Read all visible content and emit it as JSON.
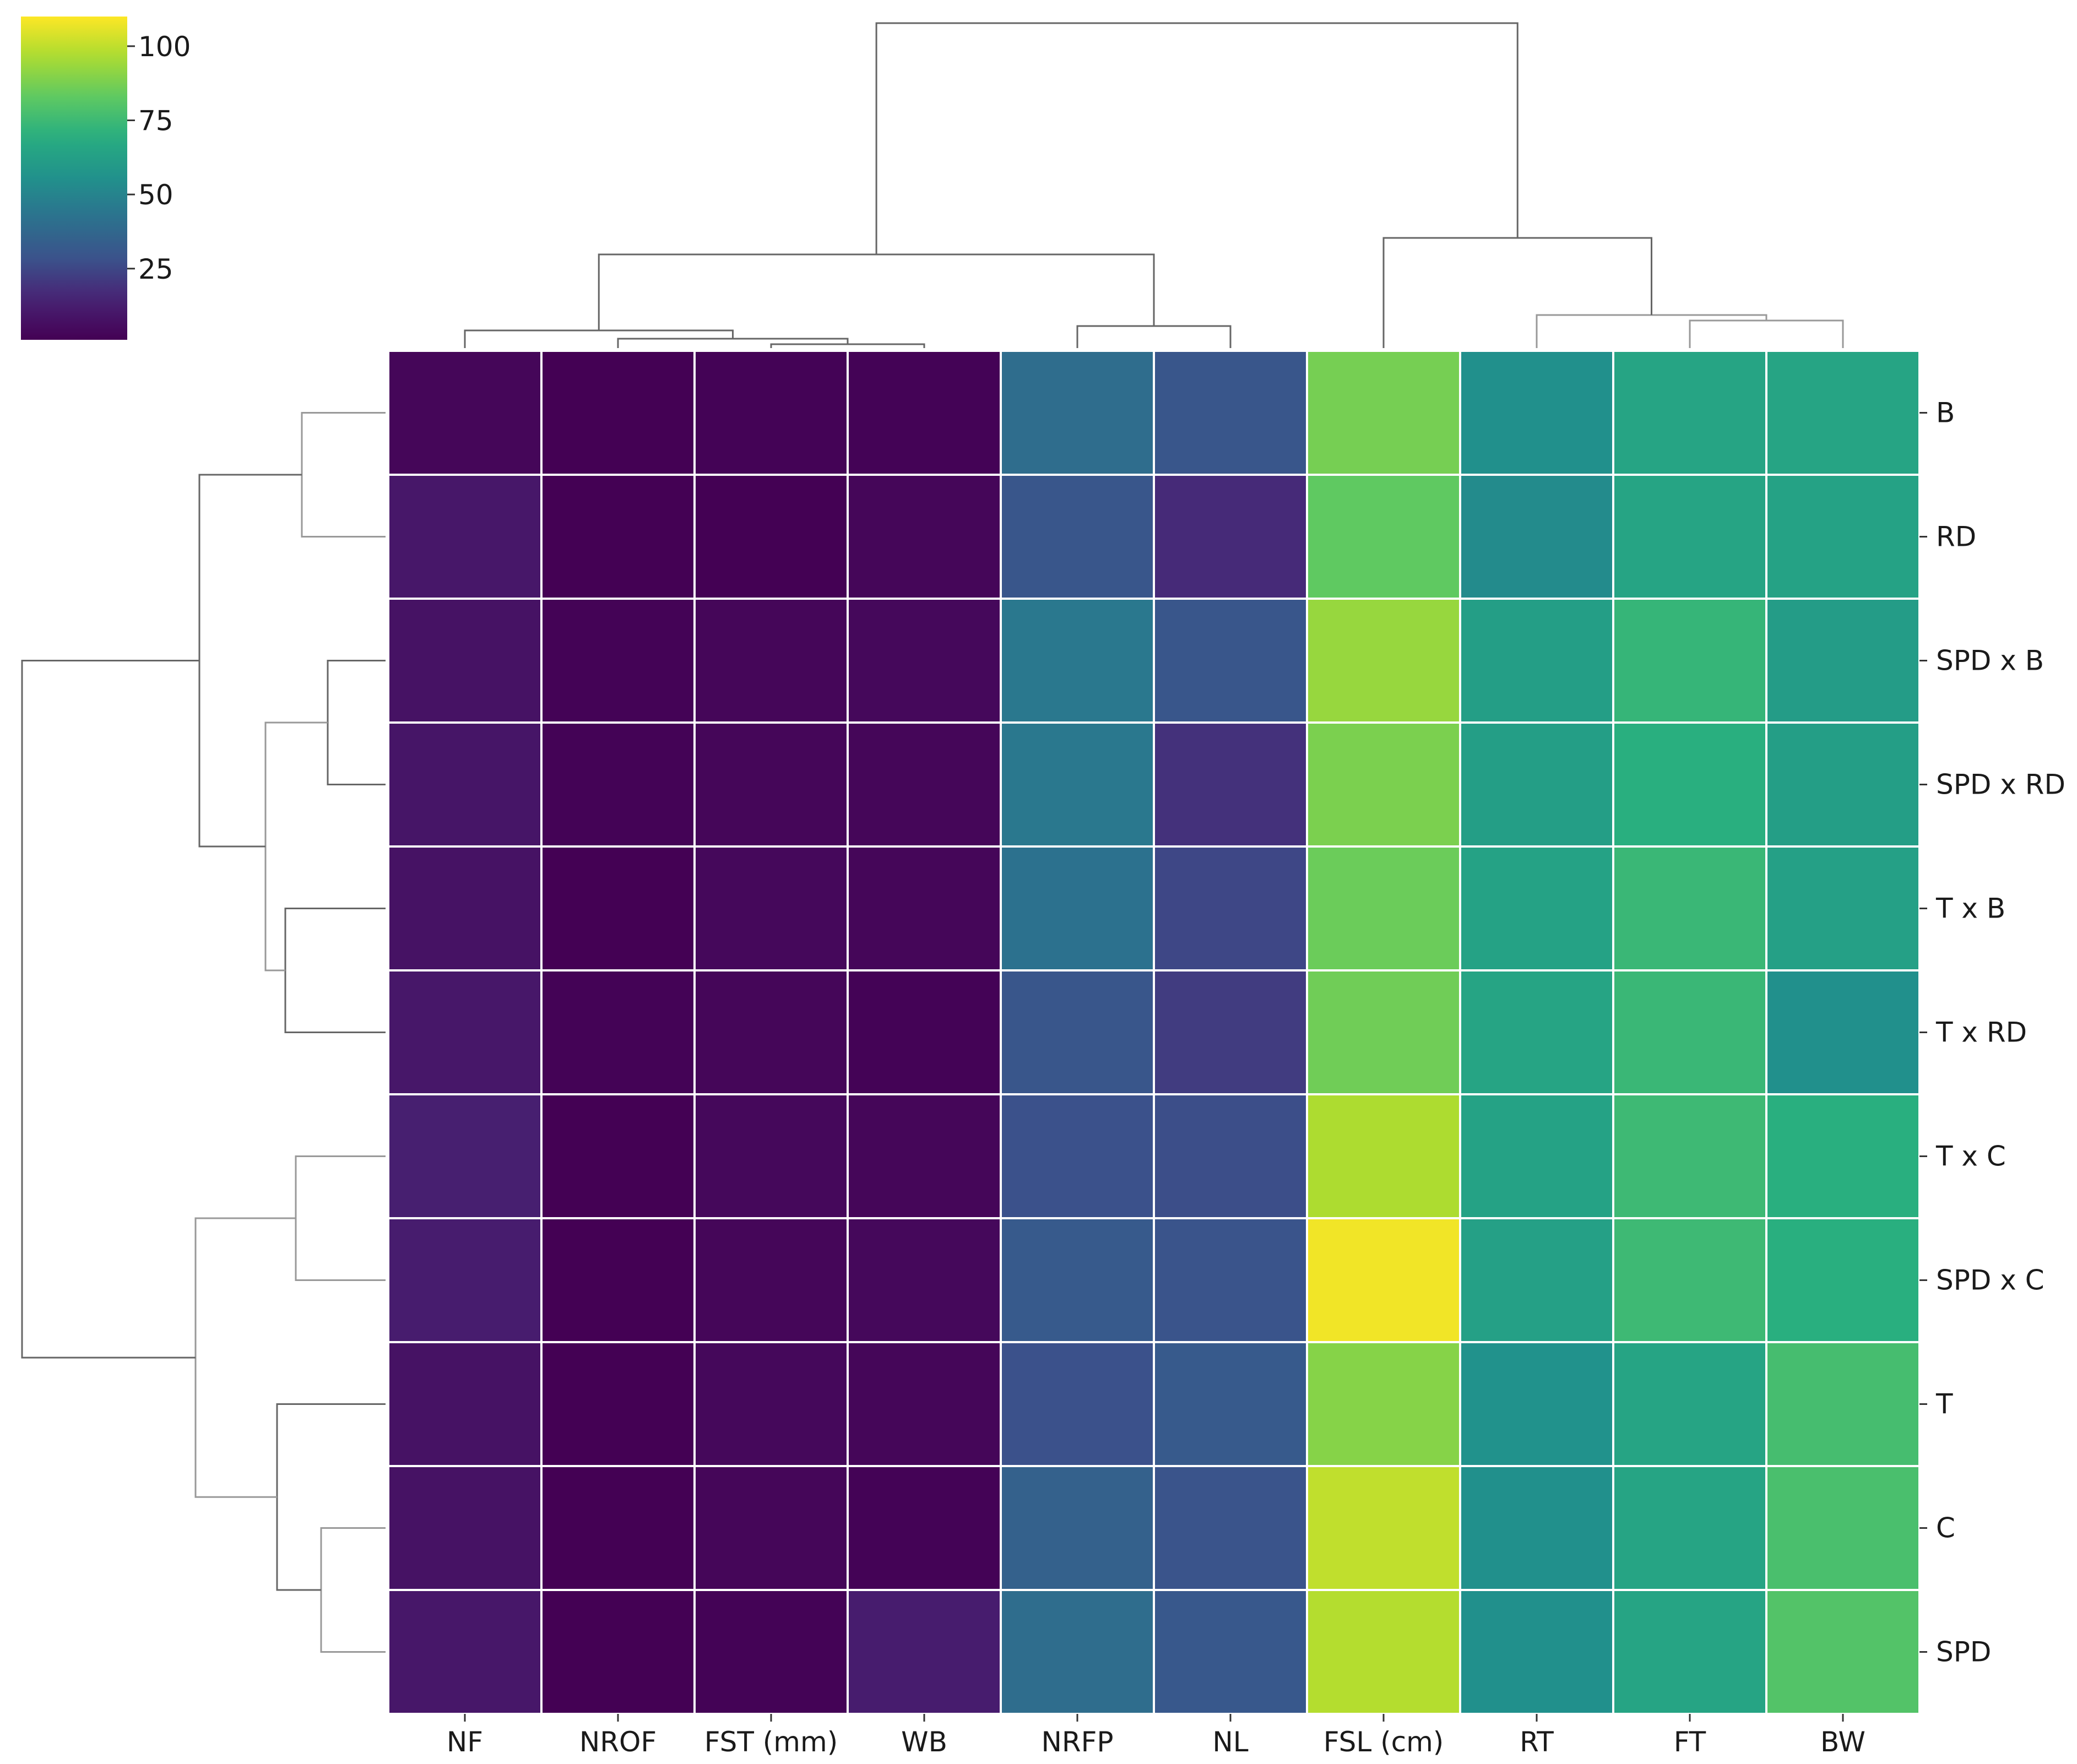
{
  "chart_data": {
    "type": "heatmap",
    "title": "",
    "xlabel": "",
    "ylabel": "",
    "columns": [
      "NF",
      "NROF",
      "FST (mm)",
      "WB",
      "NRFP",
      "NL",
      "FSL (cm)",
      "RT",
      "FT",
      "BW"
    ],
    "rows": [
      "B",
      "RD",
      "SPD x B",
      "SPD x RD",
      "T x B",
      "T x RD",
      "T x C",
      "SPD x C",
      "T",
      "C",
      "SPD"
    ],
    "values": [
      [
        3,
        1,
        2,
        2,
        40,
        30,
        87,
        55,
        65,
        65
      ],
      [
        10,
        1,
        1,
        3,
        30,
        17,
        83,
        53,
        65,
        64
      ],
      [
        8,
        2,
        3,
        4,
        45,
        30,
        93,
        62,
        73,
        61
      ],
      [
        9,
        2,
        3,
        3,
        45,
        19,
        88,
        62,
        70,
        62
      ],
      [
        8,
        1,
        4,
        3,
        42,
        25,
        85,
        64,
        74,
        63
      ],
      [
        10,
        2,
        3,
        2,
        30,
        22,
        86,
        65,
        74,
        55
      ],
      [
        13,
        1,
        4,
        3,
        28,
        27,
        97,
        64,
        75,
        70
      ],
      [
        12,
        1,
        3,
        4,
        32,
        29,
        108,
        63,
        75,
        70
      ],
      [
        8,
        1,
        4,
        3,
        28,
        32,
        90,
        56,
        65,
        77
      ],
      [
        8,
        1,
        3,
        2,
        35,
        29,
        100,
        55,
        65,
        78
      ],
      [
        10,
        1,
        2,
        12,
        40,
        31,
        98,
        55,
        65,
        80
      ]
    ],
    "colorbar": {
      "colormap": "viridis",
      "range": [
        1,
        110
      ],
      "ticks": [
        25,
        50,
        75,
        100
      ]
    },
    "dendrograms": {
      "columns": true,
      "rows": true
    },
    "grid": true
  }
}
